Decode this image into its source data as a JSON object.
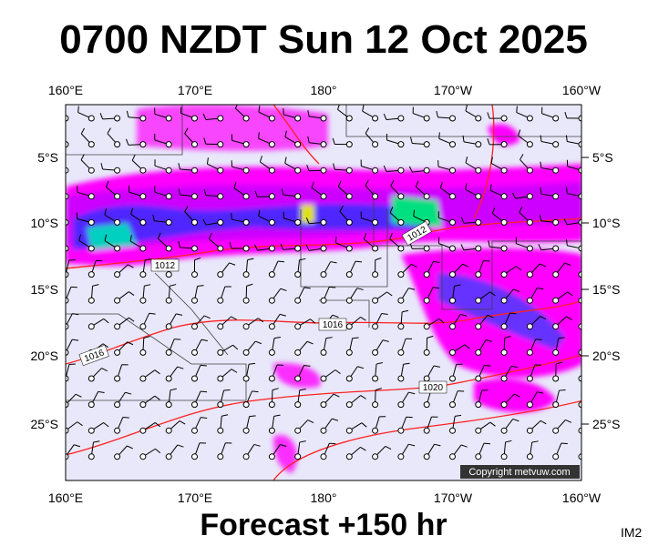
{
  "header": {
    "title": "0700 NZDT Sun 12 Oct 2025"
  },
  "map": {
    "lon_labels": [
      "160°E",
      "170°E",
      "180°",
      "170°W",
      "160°W"
    ],
    "lat_labels": [
      "5°S",
      "10°S",
      "15°S",
      "20°S",
      "25°S"
    ],
    "isobar_labels": [
      "1012",
      "1012",
      "1016",
      "1016",
      "1020"
    ],
    "copyright": "Copyright metvuw.com"
  },
  "footer": {
    "forecast": "Forecast +150 hr",
    "code": "IM2"
  }
}
